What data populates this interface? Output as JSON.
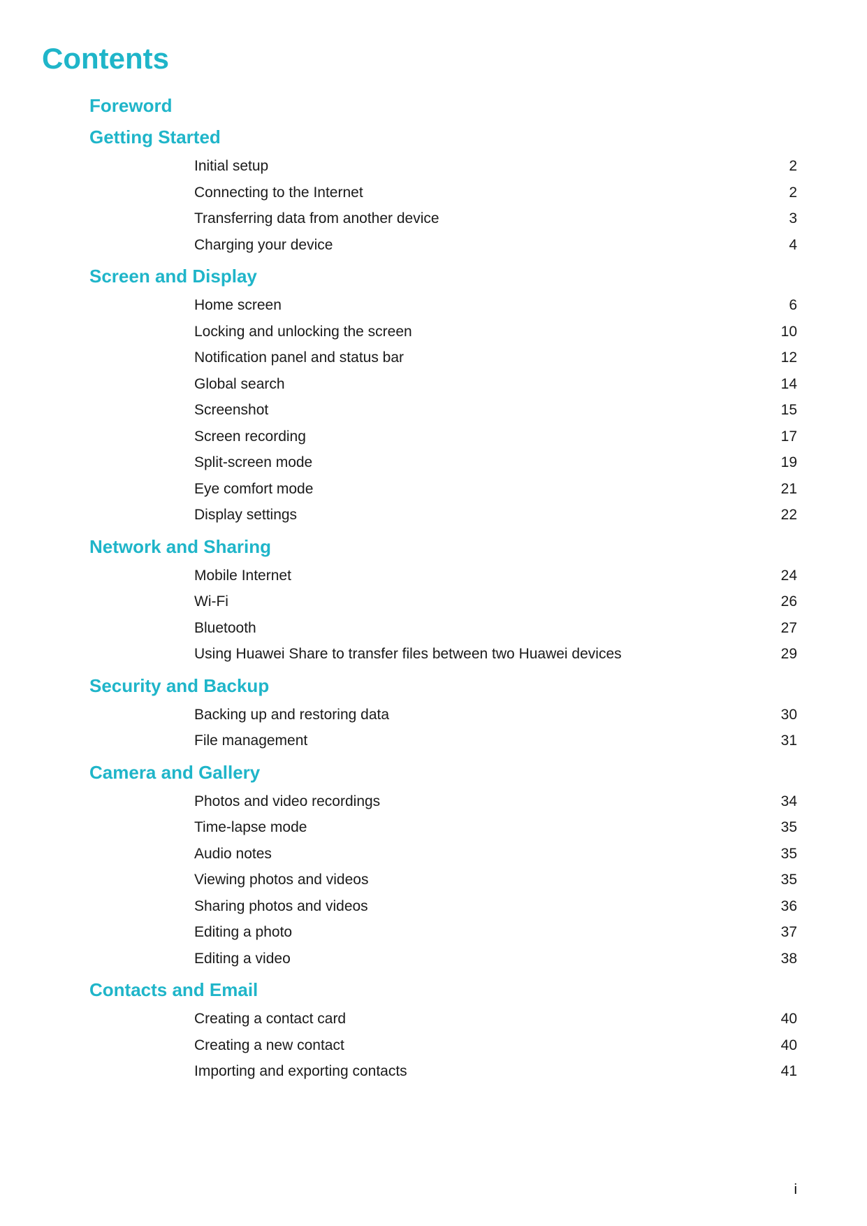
{
  "colors": {
    "title": "#1fb5c9",
    "heading": "#1fb5c9",
    "text": "#1a1a1a",
    "background": "#ffffff"
  },
  "title": "Contents",
  "page_number": "i",
  "sections": [
    {
      "heading": "Foreword",
      "entries": []
    },
    {
      "heading": "Getting Started",
      "entries": [
        {
          "title": "Initial setup",
          "page": "2"
        },
        {
          "title": "Connecting to the Internet",
          "page": "2"
        },
        {
          "title": "Transferring data from another device",
          "page": "3"
        },
        {
          "title": "Charging your device",
          "page": "4"
        }
      ]
    },
    {
      "heading": "Screen and Display",
      "entries": [
        {
          "title": "Home screen",
          "page": "6"
        },
        {
          "title": "Locking and unlocking the screen",
          "page": "10"
        },
        {
          "title": "Notification panel and status bar",
          "page": "12"
        },
        {
          "title": "Global search",
          "page": "14"
        },
        {
          "title": "Screenshot",
          "page": "15"
        },
        {
          "title": "Screen recording",
          "page": "17"
        },
        {
          "title": "Split-screen mode",
          "page": "19"
        },
        {
          "title": "Eye comfort mode",
          "page": "21"
        },
        {
          "title": "Display settings",
          "page": "22"
        }
      ]
    },
    {
      "heading": "Network and Sharing",
      "entries": [
        {
          "title": "Mobile Internet",
          "page": "24"
        },
        {
          "title": "Wi-Fi",
          "page": "26"
        },
        {
          "title": "Bluetooth",
          "page": "27"
        },
        {
          "title": "Using Huawei Share to transfer files between two Huawei devices",
          "page": "29"
        }
      ]
    },
    {
      "heading": "Security and Backup",
      "entries": [
        {
          "title": "Backing up and restoring data",
          "page": "30"
        },
        {
          "title": "File management",
          "page": "31"
        }
      ]
    },
    {
      "heading": "Camera and Gallery",
      "entries": [
        {
          "title": "Photos and video recordings",
          "page": "34"
        },
        {
          "title": "Time-lapse mode",
          "page": "35"
        },
        {
          "title": "Audio notes",
          "page": "35"
        },
        {
          "title": "Viewing photos and videos",
          "page": "35"
        },
        {
          "title": "Sharing photos and videos",
          "page": "36"
        },
        {
          "title": "Editing a photo",
          "page": "37"
        },
        {
          "title": "Editing a video",
          "page": "38"
        }
      ]
    },
    {
      "heading": "Contacts and Email",
      "entries": [
        {
          "title": "Creating a contact card",
          "page": "40"
        },
        {
          "title": "Creating a new contact",
          "page": "40"
        },
        {
          "title": "Importing and exporting contacts",
          "page": "41"
        }
      ]
    }
  ]
}
